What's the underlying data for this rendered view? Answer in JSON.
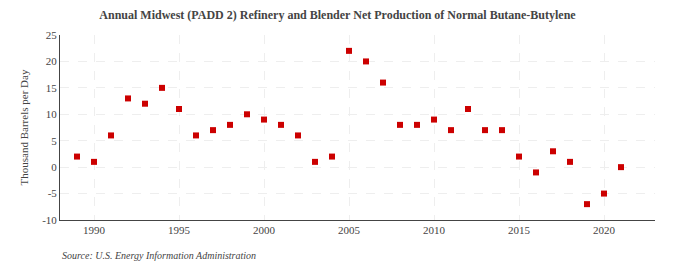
{
  "chart_data": {
    "type": "scatter",
    "title": "Annual Midwest (PADD 2) Refinery and Blender Net Production of Normal Butane-Butylene",
    "ylabel": "Thousand Barrels per Day",
    "annotations": [
      "Source: U.S. Energy Information Administration"
    ],
    "color": "#cc0000",
    "marker": "square",
    "grid": true,
    "xlim": [
      1988.0,
      2023.0
    ],
    "xticks": [
      1990,
      1995,
      2000,
      2005,
      2010,
      2015,
      2020
    ],
    "ylim": [
      -10,
      25
    ],
    "yticks": [
      -10,
      -5,
      0,
      5,
      10,
      15,
      20,
      25
    ],
    "x": [
      1989,
      1990,
      1991,
      1992,
      1993,
      1994,
      1995,
      1996,
      1997,
      1998,
      1999,
      2000,
      2001,
      2002,
      2003,
      2004,
      2005,
      2006,
      2007,
      2008,
      2009,
      2010,
      2011,
      2012,
      2013,
      2014,
      2015,
      2016,
      2017,
      2018,
      2019,
      2020,
      2021
    ],
    "values": [
      2,
      1,
      6,
      13,
      12,
      15,
      11,
      6,
      7,
      8,
      10,
      9,
      8,
      6,
      1,
      2,
      22,
      20,
      16,
      8,
      8,
      9,
      7,
      11,
      7,
      7,
      2,
      -1,
      3,
      1,
      -7,
      -5,
      0
    ]
  }
}
